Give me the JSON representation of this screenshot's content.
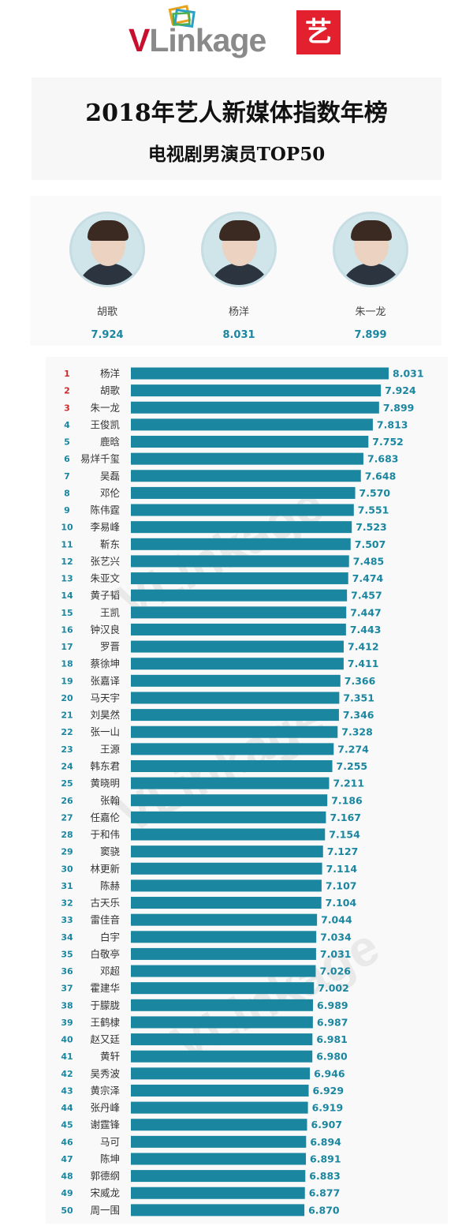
{
  "logo": {
    "brand_v": "V",
    "brand_rest": "Linkage",
    "badge": "艺"
  },
  "title": "2018年艺人新媒体指数年榜",
  "subtitle": "电视剧男演员TOP50",
  "top3": [
    {
      "name": "胡歌",
      "value": "7.924"
    },
    {
      "name": "杨洋",
      "value": "8.031"
    },
    {
      "name": "朱一龙",
      "value": "7.899"
    }
  ],
  "colors": {
    "bar": "#1a86a0",
    "rank_top": "#cc2b2b",
    "rank": "#1a86a0",
    "value": "#1a86a0"
  },
  "watermark": "VLinkage",
  "chart_data": {
    "type": "bar",
    "orientation": "horizontal",
    "title": "电视剧男演员TOP50",
    "categories": [
      "杨洋",
      "胡歌",
      "朱一龙",
      "王俊凯",
      "鹿晗",
      "易烊千玺",
      "吴磊",
      "邓伦",
      "陈伟霆",
      "李易峰",
      "靳东",
      "张艺兴",
      "朱亚文",
      "黄子韬",
      "王凯",
      "钟汉良",
      "罗晋",
      "蔡徐坤",
      "张嘉译",
      "马天宇",
      "刘昊然",
      "张一山",
      "王源",
      "韩东君",
      "黄晓明",
      "张翰",
      "任嘉伦",
      "于和伟",
      "窦骁",
      "林更新",
      "陈赫",
      "古天乐",
      "雷佳音",
      "白宇",
      "白敬亭",
      "邓超",
      "霍建华",
      "于朦胧",
      "王鹤棣",
      "赵又廷",
      "黄轩",
      "吴秀波",
      "黄宗泽",
      "张丹峰",
      "谢霆锋",
      "马可",
      "陈坤",
      "郭德纲",
      "宋威龙",
      "周一围"
    ],
    "ranks": [
      "1",
      "2",
      "3",
      "4",
      "5",
      "6",
      "7",
      "8",
      "9",
      "10",
      "11",
      "12",
      "13",
      "14",
      "15",
      "16",
      "17",
      "18",
      "19",
      "20",
      "21",
      "22",
      "23",
      "24",
      "25",
      "26",
      "27",
      "28",
      "29",
      "30",
      "31",
      "32",
      "33",
      "34",
      "35",
      "36",
      "37",
      "38",
      "39",
      "40",
      "41",
      "42",
      "43",
      "44",
      "45",
      "46",
      "47",
      "48",
      "49",
      "50"
    ],
    "values": [
      8.031,
      7.924,
      7.899,
      7.813,
      7.752,
      7.683,
      7.648,
      7.57,
      7.551,
      7.523,
      7.507,
      7.485,
      7.474,
      7.457,
      7.447,
      7.443,
      7.412,
      7.411,
      7.366,
      7.351,
      7.346,
      7.328,
      7.274,
      7.255,
      7.211,
      7.186,
      7.167,
      7.154,
      7.127,
      7.114,
      7.107,
      7.104,
      7.044,
      7.034,
      7.031,
      7.026,
      7.002,
      6.989,
      6.987,
      6.981,
      6.98,
      6.946,
      6.929,
      6.919,
      6.907,
      6.894,
      6.891,
      6.883,
      6.877,
      6.87
    ],
    "value_labels": [
      "8.031",
      "7.924",
      "7.899",
      "7.813",
      "7.752",
      "7.683",
      "7.648",
      "7.570",
      "7.551",
      "7.523",
      "7.507",
      "7.485",
      "7.474",
      "7.457",
      "7.447",
      "7.443",
      "7.412",
      "7.411",
      "7.366",
      "7.351",
      "7.346",
      "7.328",
      "7.274",
      "7.255",
      "7.211",
      "7.186",
      "7.167",
      "7.154",
      "7.127",
      "7.114",
      "7.107",
      "7.104",
      "7.044",
      "7.034",
      "7.031",
      "7.026",
      "7.002",
      "6.989",
      "6.987",
      "6.981",
      "6.980",
      "6.946",
      "6.929",
      "6.919",
      "6.907",
      "6.894",
      "6.891",
      "6.883",
      "6.877",
      "6.870"
    ]
  }
}
